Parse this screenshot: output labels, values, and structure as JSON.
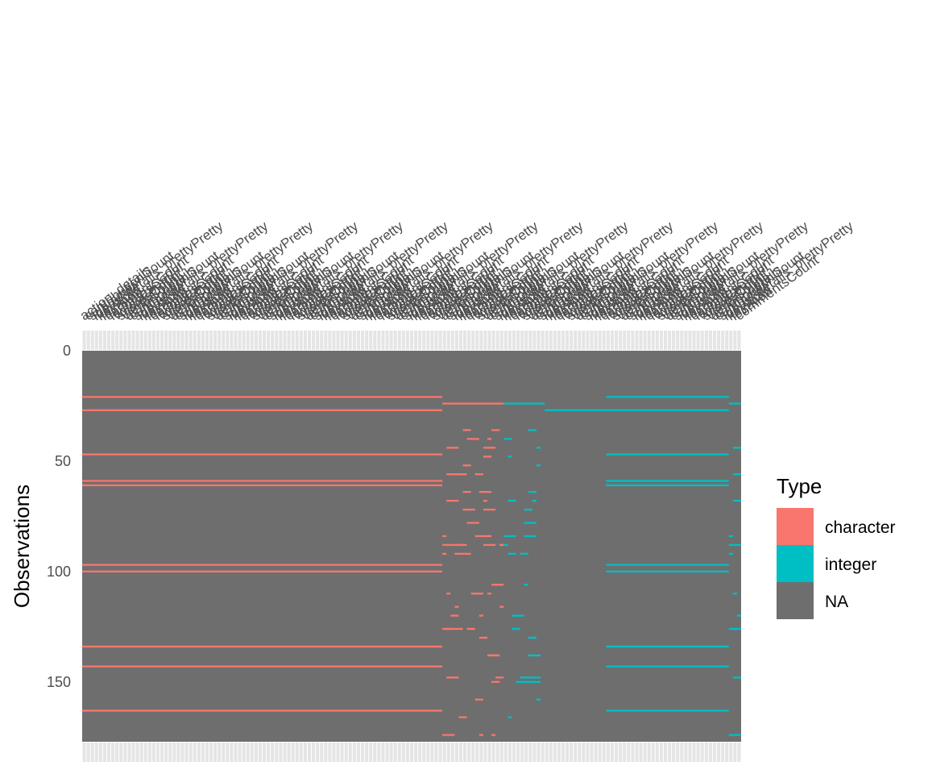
{
  "chart_data": {
    "type": "heatmap",
    "title": "",
    "xlabel": "",
    "ylabel": "Observations",
    "ylim": [
      0,
      177
    ],
    "n_rows": 177,
    "y_ticks": [
      0,
      50,
      100,
      150
    ],
    "y_tick_labels": [
      "0",
      "50",
      "100",
      "150"
    ],
    "legend": {
      "title": "Type",
      "entries": [
        {
          "label": "character",
          "color": "#F8766D"
        },
        {
          "label": "integer",
          "color": "#00BFC4"
        },
        {
          "label": "NA",
          "color": "#6E6E6E"
        }
      ]
    },
    "colors": {
      "character": "#F8766D",
      "integer": "#00BFC4",
      "NA": "#6E6E6E",
      "grid_strip": "#E5E5E5"
    },
    "column_groups": [
      {
        "type": "character",
        "count": 78,
        "example_names": [
          "action_details",
          "contributionCount",
          "submitter"
        ]
      },
      {
        "type": "character",
        "count": 25,
        "example_names": [
          "ideas_details_prettyPretty",
          "keyword",
          "location"
        ]
      },
      {
        "type": "integer",
        "count": 37,
        "example_names": [
          "commentsCount",
          "favoritesCount",
          "votesCount"
        ]
      },
      {
        "type": "integer",
        "count": 21,
        "example_names": [
          "scoresCount",
          "viewsCount"
        ]
      }
    ],
    "column_labels": [
      "action_details",
      "contributionCount",
      "submitter",
      "ideas_details_prettyPretty",
      "keyword",
      "location",
      "commentsCount",
      "favoritesCount",
      "votesCount",
      "scoresCount",
      "viewsCount"
    ],
    "full_rows": [
      {
        "row": 21,
        "start": 0,
        "end": 87
      },
      {
        "row": 27,
        "start": 0,
        "end": 87
      },
      {
        "row": 47,
        "start": 0,
        "end": 87
      },
      {
        "row": 59,
        "start": 0,
        "end": 87
      },
      {
        "row": 61,
        "start": 0,
        "end": 87
      },
      {
        "row": 97,
        "start": 0,
        "end": 87
      },
      {
        "row": 100,
        "start": 0,
        "end": 87
      },
      {
        "row": 134,
        "start": 0,
        "end": 87
      },
      {
        "row": 143,
        "start": 0,
        "end": 87
      },
      {
        "row": 163,
        "start": 0,
        "end": 87
      }
    ],
    "partial_rows": [
      {
        "row": 24,
        "start": 88,
        "end": 112
      },
      {
        "row": 27,
        "start": 113,
        "end": 127
      }
    ],
    "sparse_rows": [
      36,
      40,
      44,
      48,
      52,
      56,
      64,
      68,
      72,
      78,
      84,
      88,
      92,
      106,
      110,
      116,
      120,
      126,
      130,
      138,
      148,
      150,
      158,
      166,
      174
    ]
  }
}
